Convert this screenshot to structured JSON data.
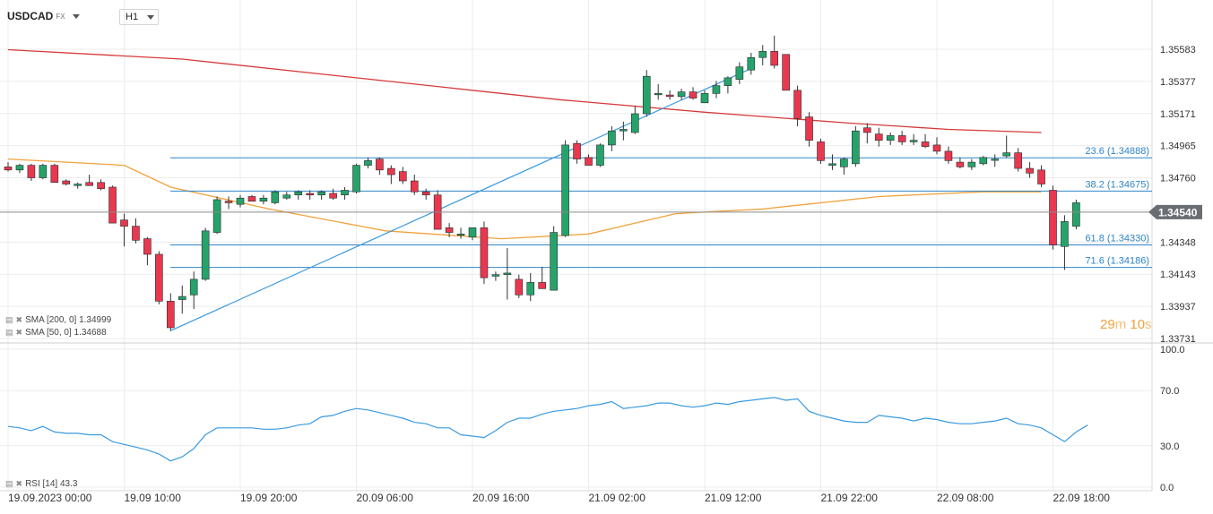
{
  "header": {
    "symbol": "USDCAD",
    "market": "FX",
    "timeframe": "H1"
  },
  "timer": {
    "minutes": "29",
    "m_unit": "m",
    "seconds": "10",
    "s_unit": "s"
  },
  "indicators": {
    "sma200": "SMA [200, 0] 1.34999",
    "sma50": "SMA [50, 0] 1.34688",
    "rsi": "RSI [14] 43.3"
  },
  "colors": {
    "up": "#26a36b",
    "down": "#e8384f",
    "sma200": "#d63a3a",
    "sma50": "#f0a23b",
    "fib": "#2f84c8",
    "trend": "#3a9ae0",
    "rsi": "#3a9ae0",
    "current_price_bg": "#6a6e73"
  },
  "chart_data": {
    "type": "candlestick",
    "price_axis": {
      "min": 1.33731,
      "max": 1.35583,
      "ticks": [
        "1.35583",
        "1.35377",
        "1.35171",
        "1.34965",
        "1.34760",
        "1.34554",
        "1.34348",
        "1.34143",
        "1.33937",
        "1.33731"
      ]
    },
    "current_price": "1.34540",
    "time_labels": [
      "19.09.2023  00:00",
      "19.09  10:00",
      "19.09  20:00",
      "20.09  06:00",
      "20.09  16:00",
      "21.09  02:00",
      "21.09  12:00",
      "21.09  22:00",
      "22.09  08:00",
      "22.09  18:00"
    ],
    "candles": [
      [
        1.3483,
        1.3486,
        1.348,
        1.3481
      ],
      [
        1.3481,
        1.3485,
        1.3479,
        1.3484
      ],
      [
        1.3484,
        1.3485,
        1.3474,
        1.3476
      ],
      [
        1.3476,
        1.3485,
        1.3475,
        1.3484
      ],
      [
        1.3484,
        1.3485,
        1.3473,
        1.3473
      ],
      [
        1.3474,
        1.3475,
        1.3471,
        1.3472
      ],
      [
        1.3471,
        1.3473,
        1.3469,
        1.3472
      ],
      [
        1.3473,
        1.3478,
        1.3471,
        1.3471
      ],
      [
        1.3473,
        1.3475,
        1.3468,
        1.3469
      ],
      [
        1.347,
        1.3471,
        1.3447,
        1.3447
      ],
      [
        1.3449,
        1.3453,
        1.3432,
        1.3445
      ],
      [
        1.3445,
        1.345,
        1.3434,
        1.3436
      ],
      [
        1.3437,
        1.3438,
        1.342,
        1.3427
      ],
      [
        1.3427,
        1.3429,
        1.3395,
        1.3397
      ],
      [
        1.3397,
        1.3402,
        1.3378,
        1.338
      ],
      [
        1.3398,
        1.3407,
        1.3389,
        1.34
      ],
      [
        1.3401,
        1.3416,
        1.3392,
        1.3411
      ],
      [
        1.3411,
        1.3444,
        1.341,
        1.3442
      ],
      [
        1.3441,
        1.3464,
        1.344,
        1.3462
      ],
      [
        1.3461,
        1.3464,
        1.3456,
        1.346
      ],
      [
        1.3459,
        1.3465,
        1.3457,
        1.3463
      ],
      [
        1.3464,
        1.3465,
        1.3461,
        1.3461
      ],
      [
        1.3461,
        1.3465,
        1.3459,
        1.3463
      ],
      [
        1.346,
        1.3468,
        1.3459,
        1.3467
      ],
      [
        1.3463,
        1.3467,
        1.3462,
        1.3465
      ],
      [
        1.3465,
        1.3468,
        1.3462,
        1.3467
      ],
      [
        1.3466,
        1.3468,
        1.3462,
        1.3465
      ],
      [
        1.3465,
        1.3468,
        1.3462,
        1.3467
      ],
      [
        1.3466,
        1.3469,
        1.3462,
        1.3463
      ],
      [
        1.3465,
        1.347,
        1.3462,
        1.3468
      ],
      [
        1.3467,
        1.3485,
        1.3466,
        1.3484
      ],
      [
        1.3484,
        1.3489,
        1.3482,
        1.3487
      ],
      [
        1.3488,
        1.3489,
        1.3478,
        1.3481
      ],
      [
        1.3482,
        1.3484,
        1.3472,
        1.3478
      ],
      [
        1.348,
        1.3483,
        1.3472,
        1.3474
      ],
      [
        1.3474,
        1.3478,
        1.3465,
        1.3467
      ],
      [
        1.3467,
        1.3469,
        1.3462,
        1.3465
      ],
      [
        1.3465,
        1.3468,
        1.3443,
        1.3443
      ],
      [
        1.3444,
        1.3447,
        1.3438,
        1.3441
      ],
      [
        1.344,
        1.3444,
        1.3437,
        1.344
      ],
      [
        1.3438,
        1.3444,
        1.3436,
        1.3444
      ],
      [
        1.3444,
        1.3448,
        1.3408,
        1.3412
      ],
      [
        1.3413,
        1.3416,
        1.341,
        1.3414
      ],
      [
        1.3414,
        1.3431,
        1.3398,
        1.3415
      ],
      [
        1.3411,
        1.3414,
        1.3399,
        1.3401
      ],
      [
        1.3401,
        1.3415,
        1.3397,
        1.3409
      ],
      [
        1.3409,
        1.3419,
        1.3405,
        1.3405
      ],
      [
        1.3404,
        1.3445,
        1.3404,
        1.3441
      ],
      [
        1.3439,
        1.35,
        1.3438,
        1.3497
      ],
      [
        1.3498,
        1.35,
        1.3485,
        1.3488
      ],
      [
        1.3489,
        1.3491,
        1.3484,
        1.3484
      ],
      [
        1.3484,
        1.3498,
        1.3483,
        1.3497
      ],
      [
        1.3497,
        1.3509,
        1.3493,
        1.3506
      ],
      [
        1.3506,
        1.3512,
        1.35,
        1.3507
      ],
      [
        1.3505,
        1.3522,
        1.3504,
        1.3517
      ],
      [
        1.3517,
        1.3545,
        1.3515,
        1.3541
      ],
      [
        1.353,
        1.3536,
        1.3526,
        1.353
      ],
      [
        1.3529,
        1.3532,
        1.3526,
        1.3528
      ],
      [
        1.3528,
        1.3533,
        1.3526,
        1.3531
      ],
      [
        1.3531,
        1.3534,
        1.3526,
        1.3527
      ],
      [
        1.3524,
        1.3532,
        1.3524,
        1.353
      ],
      [
        1.353,
        1.3538,
        1.3527,
        1.3535
      ],
      [
        1.3535,
        1.3541,
        1.353,
        1.354
      ],
      [
        1.3539,
        1.355,
        1.3536,
        1.3547
      ],
      [
        1.3545,
        1.3556,
        1.3542,
        1.3553
      ],
      [
        1.3553,
        1.3561,
        1.3548,
        1.3557
      ],
      [
        1.3557,
        1.3567,
        1.3546,
        1.3548
      ],
      [
        1.3555,
        1.3555,
        1.3532,
        1.3532
      ],
      [
        1.3532,
        1.3535,
        1.3509,
        1.3514
      ],
      [
        1.3515,
        1.3518,
        1.3496,
        1.35
      ],
      [
        1.3499,
        1.3501,
        1.3485,
        1.3487
      ],
      [
        1.3484,
        1.3491,
        1.3481,
        1.3485
      ],
      [
        1.3483,
        1.3489,
        1.3478,
        1.3488
      ],
      [
        1.3485,
        1.3509,
        1.3483,
        1.3506
      ],
      [
        1.3508,
        1.3511,
        1.3498,
        1.3505
      ],
      [
        1.3504,
        1.3508,
        1.3496,
        1.35
      ],
      [
        1.35,
        1.3505,
        1.3497,
        1.3503
      ],
      [
        1.3503,
        1.3506,
        1.3497,
        1.3499
      ],
      [
        1.3499,
        1.3504,
        1.3497,
        1.35
      ],
      [
        1.3499,
        1.3504,
        1.3495,
        1.3496
      ],
      [
        1.3497,
        1.3502,
        1.3491,
        1.3493
      ],
      [
        1.3493,
        1.3496,
        1.3485,
        1.3487
      ],
      [
        1.3486,
        1.3489,
        1.3482,
        1.3483
      ],
      [
        1.3483,
        1.3488,
        1.3481,
        1.3486
      ],
      [
        1.3485,
        1.349,
        1.3484,
        1.3489
      ],
      [
        1.3488,
        1.3491,
        1.3483,
        1.3488
      ],
      [
        1.349,
        1.3503,
        1.3489,
        1.3492
      ],
      [
        1.3492,
        1.3495,
        1.348,
        1.3482
      ],
      [
        1.3482,
        1.3486,
        1.3476,
        1.3479
      ],
      [
        1.3481,
        1.3484,
        1.347,
        1.3472
      ],
      [
        1.3468,
        1.3471,
        1.343,
        1.3433
      ],
      [
        1.3432,
        1.3452,
        1.3417,
        1.3448
      ],
      [
        1.3445,
        1.3462,
        1.3443,
        1.346
      ]
    ],
    "sma200_points": [
      [
        0,
        1.3558
      ],
      [
        30,
        1.3552
      ],
      [
        60,
        1.354
      ],
      [
        95,
        1.3526
      ],
      [
        120,
        1.3518
      ],
      [
        145,
        1.3511
      ],
      [
        162,
        1.3507
      ],
      [
        178,
        1.3505
      ]
    ],
    "sma50_points": [
      [
        0,
        1.3488
      ],
      [
        20,
        1.3484
      ],
      [
        28,
        1.347
      ],
      [
        45,
        1.3456
      ],
      [
        65,
        1.3442
      ],
      [
        85,
        1.3437
      ],
      [
        100,
        1.344
      ],
      [
        115,
        1.3453
      ],
      [
        130,
        1.3456
      ],
      [
        150,
        1.3464
      ],
      [
        168,
        1.3467
      ],
      [
        178,
        1.3467
      ]
    ],
    "fib_levels": [
      {
        "label": "23.6 (1.34888)",
        "price": 1.34888
      },
      {
        "label": "38.2 (1.34675)",
        "price": 1.34675
      },
      {
        "label": "61.8 (1.34330)",
        "price": 1.3433
      },
      {
        "label": "71.6 (1.34186)",
        "price": 1.34186
      }
    ],
    "trendline": [
      [
        1.3378
      ],
      [
        1.3546
      ]
    ],
    "rsi_axis": {
      "ticks": [
        "100.0",
        "70.0",
        "30.0",
        "0.0"
      ]
    },
    "rsi": [
      44,
      43,
      41,
      44,
      40,
      39,
      39,
      38,
      38,
      33,
      31,
      29,
      27,
      24,
      19,
      22,
      28,
      38,
      43,
      43,
      43,
      43,
      42,
      42,
      43,
      45,
      46,
      51,
      52,
      55,
      57,
      56,
      54,
      52,
      50,
      47,
      46,
      43,
      43,
      38,
      37,
      36,
      41,
      47,
      50,
      50,
      53,
      55,
      56,
      57,
      59,
      60,
      62,
      57,
      58,
      59,
      61,
      61,
      59,
      58,
      59,
      61,
      60,
      62,
      63,
      64,
      65,
      63,
      64,
      55,
      52,
      50,
      48,
      47,
      47,
      52,
      51,
      50,
      48,
      50,
      49,
      47,
      46,
      46,
      47,
      48,
      50,
      46,
      45,
      43,
      38,
      33,
      40,
      45
    ]
  }
}
